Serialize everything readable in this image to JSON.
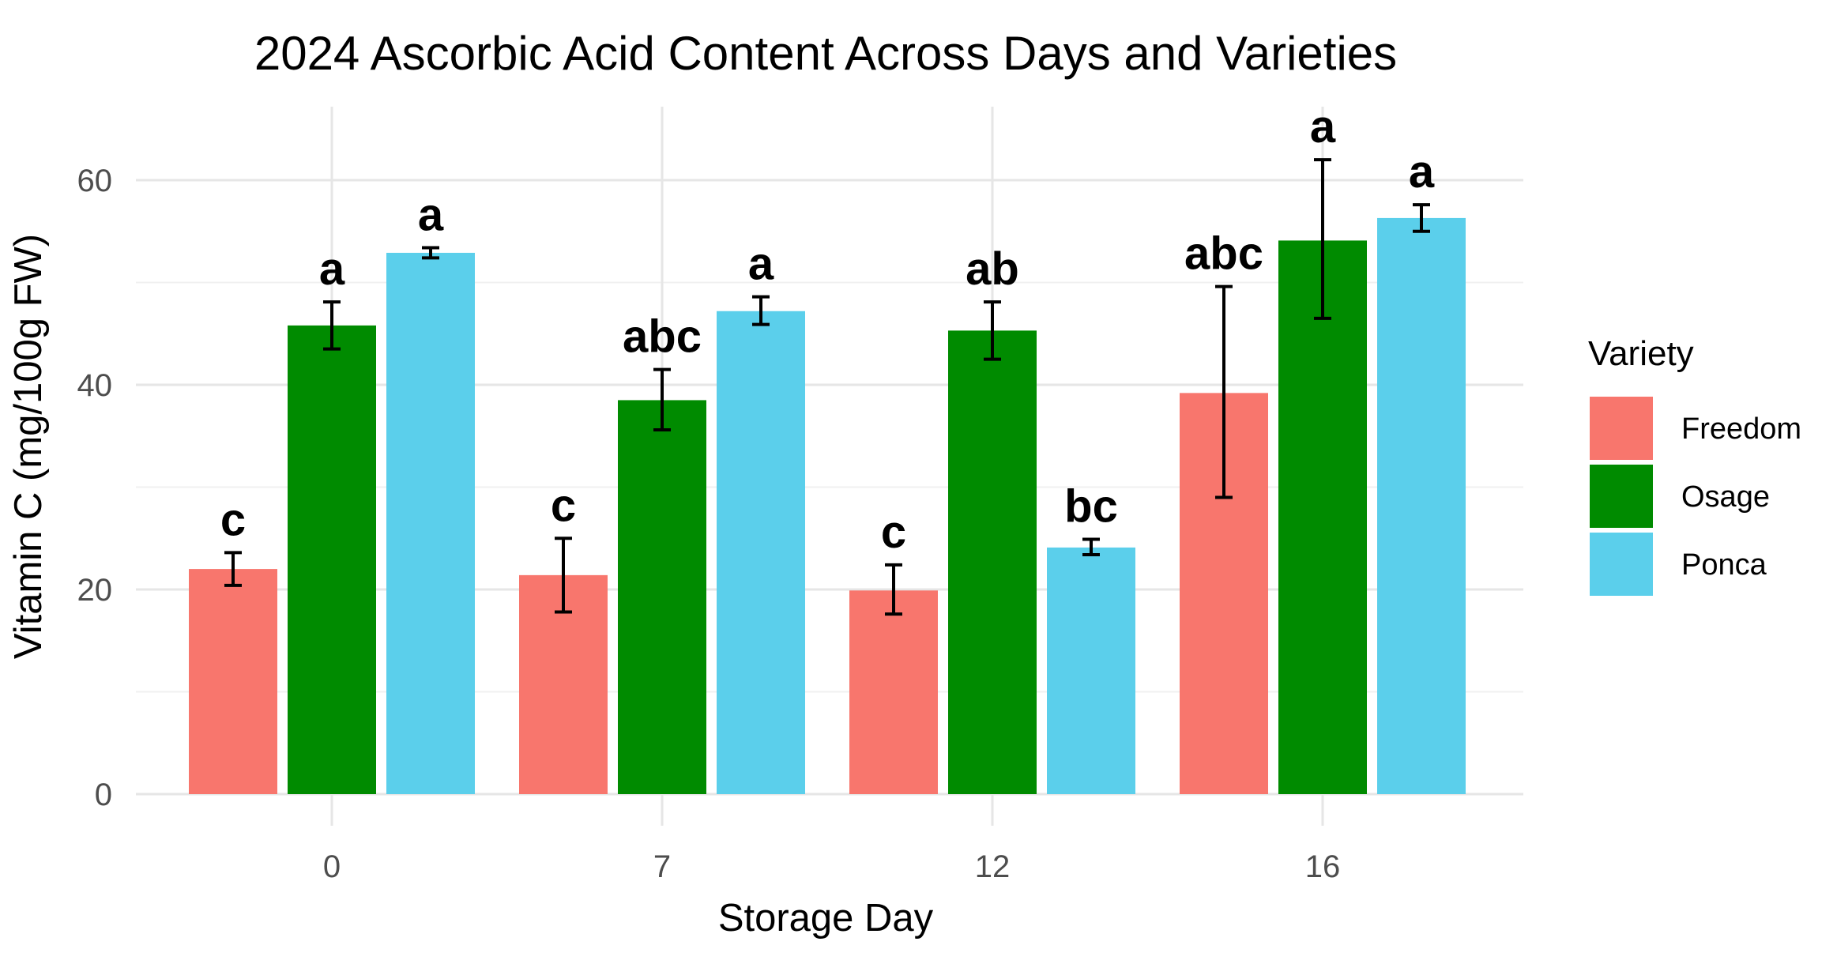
{
  "chart_data": {
    "type": "bar",
    "title": "2024 Ascorbic Acid Content Across Days and Varieties",
    "xlabel": "Storage Day",
    "ylabel": "Vitamin C (mg/100g FW)",
    "categories": [
      "0",
      "7",
      "12",
      "16"
    ],
    "ylim": [
      0,
      68
    ],
    "yticks": [
      0,
      20,
      40,
      60
    ],
    "yticks_minor": [
      10,
      30,
      50
    ],
    "grid": true,
    "legend": {
      "title": "Variety",
      "position": "right"
    },
    "series": [
      {
        "name": "Freedom",
        "color": "#F8766D",
        "values": [
          22.0,
          21.4,
          19.9,
          39.2
        ],
        "errors": [
          [
            20.4,
            23.6
          ],
          [
            17.8,
            25.0
          ],
          [
            17.6,
            22.4
          ],
          [
            29.0,
            49.6
          ]
        ],
        "letters": [
          "c",
          "c",
          "c",
          "abc"
        ]
      },
      {
        "name": "Osage",
        "color": "#008B00",
        "values": [
          45.8,
          38.5,
          45.3,
          54.1
        ],
        "errors": [
          [
            43.5,
            48.1
          ],
          [
            35.6,
            41.5
          ],
          [
            42.5,
            48.1
          ],
          [
            46.5,
            62.0
          ]
        ],
        "letters": [
          "a",
          "abc",
          "ab",
          "a"
        ]
      },
      {
        "name": "Ponca",
        "color": "#5BCFEB",
        "values": [
          52.9,
          47.2,
          24.1,
          56.3
        ],
        "errors": [
          [
            52.4,
            53.4
          ],
          [
            45.9,
            48.6
          ],
          [
            23.4,
            24.9
          ],
          [
            55.0,
            57.6
          ]
        ],
        "letters": [
          "a",
          "a",
          "bc",
          "a"
        ]
      }
    ]
  }
}
